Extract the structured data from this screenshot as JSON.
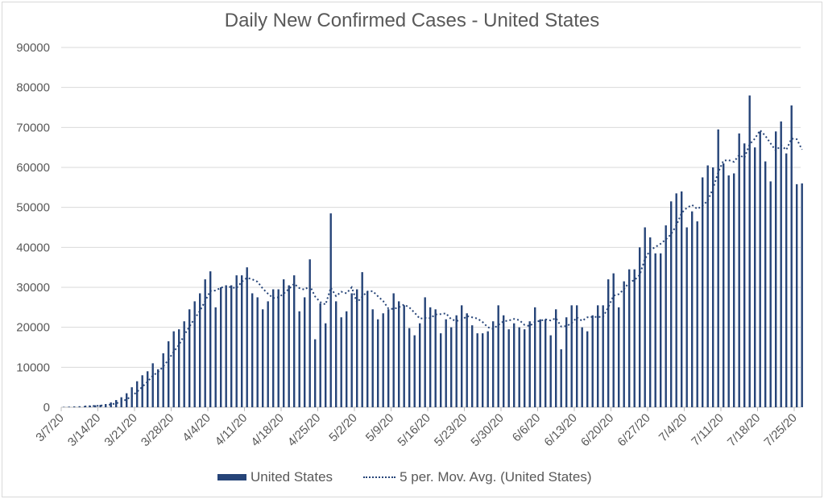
{
  "chart_data": {
    "type": "bar",
    "title": "Daily New Confirmed Cases - United States",
    "xlabel": "",
    "ylabel": "",
    "ylim": [
      0,
      90000
    ],
    "yticks": [
      0,
      10000,
      20000,
      30000,
      40000,
      50000,
      60000,
      70000,
      80000,
      90000
    ],
    "xtick_labels": [
      "3/7/20",
      "3/14/20",
      "3/21/20",
      "3/28/20",
      "4/4/20",
      "4/11/20",
      "4/18/20",
      "4/25/20",
      "5/2/20",
      "5/9/20",
      "5/16/20",
      "5/23/20",
      "5/30/20",
      "6/6/20",
      "6/13/20",
      "6/20/20",
      "6/27/20",
      "7/4/20",
      "7/11/20",
      "7/18/20",
      "7/25/20"
    ],
    "grid": true,
    "legend_position": "bottom",
    "start_date": "3/7/20",
    "series": [
      {
        "name": "United States",
        "kind": "bar",
        "color": "#264478",
        "values": [
          100,
          150,
          200,
          250,
          300,
          400,
          500,
          600,
          800,
          1200,
          1800,
          2500,
          3500,
          5000,
          6500,
          8000,
          9000,
          11000,
          9500,
          13500,
          16500,
          19000,
          19500,
          21500,
          24500,
          26500,
          28500,
          32000,
          34000,
          25000,
          30000,
          30500,
          30500,
          33000,
          33000,
          35000,
          28500,
          27500,
          24500,
          26500,
          29500,
          29500,
          32000,
          30500,
          33000,
          24000,
          27500,
          37000,
          17000,
          26000,
          21000,
          48500,
          26500,
          22500,
          24000,
          28500,
          29500,
          33800,
          29000,
          24500,
          22000,
          23500,
          24500,
          28500,
          26500,
          25500,
          19800,
          18000,
          21000,
          27500,
          25000,
          24500,
          18500,
          22000,
          20000,
          23000,
          25500,
          23500,
          20500,
          18500,
          18500,
          19000,
          21500,
          25500,
          23000,
          19500,
          21000,
          20000,
          19500,
          21500,
          25000,
          22000,
          22000,
          18000,
          24500,
          14500,
          22500,
          25500,
          25500,
          20000,
          19000,
          23000,
          25500,
          25500,
          32000,
          33500,
          25000,
          31500,
          34500,
          34500,
          40000,
          45000,
          42500,
          38500,
          38500,
          45500,
          51500,
          53500,
          54000,
          45000,
          49000,
          46500,
          57500,
          60500,
          60000,
          69500,
          61000,
          58000,
          58500,
          68500,
          66000,
          78000,
          65000,
          69000,
          61500,
          56500,
          69000,
          71500,
          63500,
          75500,
          55800,
          56000
        ]
      },
      {
        "name": "5 per. Mov. Avg. (United States)",
        "kind": "line",
        "style": "dotted",
        "color": "#264478",
        "period": 5
      }
    ]
  },
  "legend": {
    "bar_label": "United States",
    "line_label": "5 per. Mov. Avg. (United States)"
  }
}
